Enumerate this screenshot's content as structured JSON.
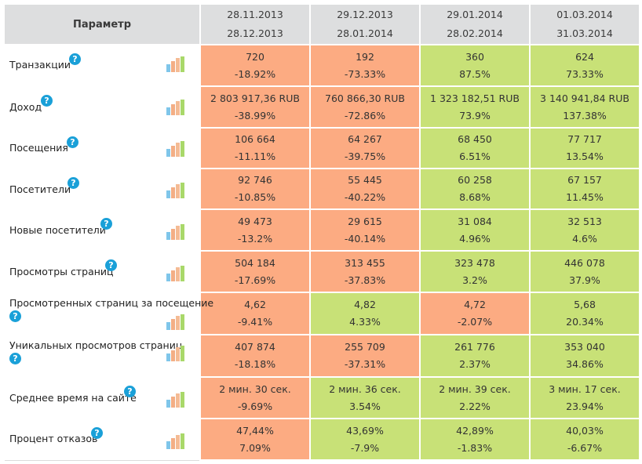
{
  "header": {
    "param_label": "Параметр",
    "periods": [
      {
        "start": "28.11.2013",
        "end": "28.12.2013"
      },
      {
        "start": "29.12.2013",
        "end": "28.01.2014"
      },
      {
        "start": "29.01.2014",
        "end": "28.02.2014"
      },
      {
        "start": "01.03.2014",
        "end": "31.03.2014"
      }
    ]
  },
  "help_glyph": "?",
  "colors": {
    "negative": "#fcab82",
    "positive": "#c8e177",
    "header": "#dddedf",
    "help_icon": "#1aa0d8"
  },
  "rows": [
    {
      "label": "Транзакции",
      "cells": [
        {
          "value": "720",
          "change": "-18.92%",
          "status": "negative"
        },
        {
          "value": "192",
          "change": "-73.33%",
          "status": "negative"
        },
        {
          "value": "360",
          "change": "87.5%",
          "status": "positive"
        },
        {
          "value": "624",
          "change": "73.33%",
          "status": "positive"
        }
      ]
    },
    {
      "label": "Доход",
      "cells": [
        {
          "value": "2 803 917,36 RUB",
          "change": "-38.99%",
          "status": "negative"
        },
        {
          "value": "760 866,30 RUB",
          "change": "-72.86%",
          "status": "negative"
        },
        {
          "value": "1 323 182,51 RUB",
          "change": "73.9%",
          "status": "positive"
        },
        {
          "value": "3 140 941,84 RUB",
          "change": "137.38%",
          "status": "positive"
        }
      ]
    },
    {
      "label": "Посещения",
      "cells": [
        {
          "value": "106 664",
          "change": "-11.11%",
          "status": "negative"
        },
        {
          "value": "64 267",
          "change": "-39.75%",
          "status": "negative"
        },
        {
          "value": "68 450",
          "change": "6.51%",
          "status": "positive"
        },
        {
          "value": "77 717",
          "change": "13.54%",
          "status": "positive"
        }
      ]
    },
    {
      "label": "Посетители",
      "cells": [
        {
          "value": "92 746",
          "change": "-10.85%",
          "status": "negative"
        },
        {
          "value": "55 445",
          "change": "-40.22%",
          "status": "negative"
        },
        {
          "value": "60 258",
          "change": "8.68%",
          "status": "positive"
        },
        {
          "value": "67 157",
          "change": "11.45%",
          "status": "positive"
        }
      ]
    },
    {
      "label": "Новые посетители",
      "cells": [
        {
          "value": "49 473",
          "change": "-13.2%",
          "status": "negative"
        },
        {
          "value": "29 615",
          "change": "-40.14%",
          "status": "negative"
        },
        {
          "value": "31 084",
          "change": "4.96%",
          "status": "positive"
        },
        {
          "value": "32 513",
          "change": "4.6%",
          "status": "positive"
        }
      ]
    },
    {
      "label": "Просмотры страниц",
      "cells": [
        {
          "value": "504 184",
          "change": "-17.69%",
          "status": "negative"
        },
        {
          "value": "313 455",
          "change": "-37.83%",
          "status": "negative"
        },
        {
          "value": "323 478",
          "change": "3.2%",
          "status": "positive"
        },
        {
          "value": "446 078",
          "change": "37.9%",
          "status": "positive"
        }
      ]
    },
    {
      "label": "Просмотренных страниц за посещение",
      "cells": [
        {
          "value": "4,62",
          "change": "-9.41%",
          "status": "negative"
        },
        {
          "value": "4,82",
          "change": "4.33%",
          "status": "positive"
        },
        {
          "value": "4,72",
          "change": "-2.07%",
          "status": "negative"
        },
        {
          "value": "5,68",
          "change": "20.34%",
          "status": "positive"
        }
      ]
    },
    {
      "label": "Уникальных просмотров страниц",
      "cells": [
        {
          "value": "407 874",
          "change": "-18.18%",
          "status": "negative"
        },
        {
          "value": "255 709",
          "change": "-37.31%",
          "status": "negative"
        },
        {
          "value": "261 776",
          "change": "2.37%",
          "status": "positive"
        },
        {
          "value": "353 040",
          "change": "34.86%",
          "status": "positive"
        }
      ]
    },
    {
      "label": "Среднее время на сайте",
      "cells": [
        {
          "value": "2 мин. 30 сек.",
          "change": "-9.69%",
          "status": "negative"
        },
        {
          "value": "2 мин. 36 сек.",
          "change": "3.54%",
          "status": "positive"
        },
        {
          "value": "2 мин. 39 сек.",
          "change": "2.22%",
          "status": "positive"
        },
        {
          "value": "3 мин. 17 сек.",
          "change": "23.94%",
          "status": "positive"
        }
      ]
    },
    {
      "label": "Процент отказов",
      "cells": [
        {
          "value": "47,44%",
          "change": "7.09%",
          "status": "negative"
        },
        {
          "value": "43,69%",
          "change": "-7.9%",
          "status": "positive"
        },
        {
          "value": "42,89%",
          "change": "-1.83%",
          "status": "positive"
        },
        {
          "value": "40,03%",
          "change": "-6.67%",
          "status": "positive"
        }
      ]
    }
  ]
}
